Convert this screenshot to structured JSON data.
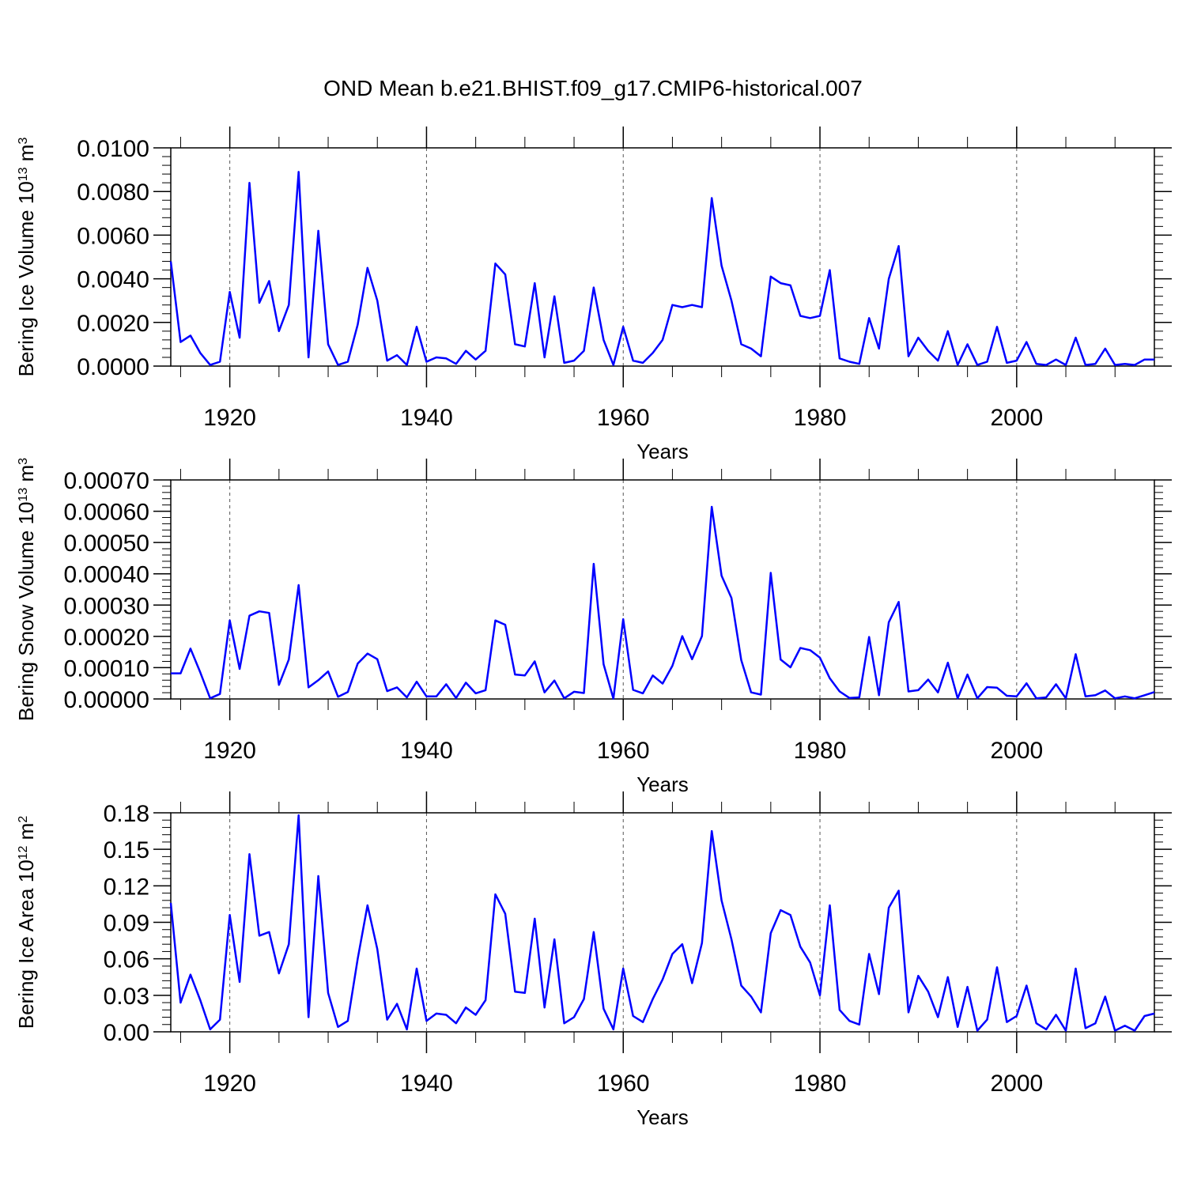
{
  "figure": {
    "title": "OND Mean b.e21.BHIST.f09_g17.CMIP6-historical.007",
    "line_color": "#0000ff",
    "axis_color": "#000000",
    "grid_color": "#555555"
  },
  "chart_data": [
    {
      "type": "line",
      "xlabel": "Years",
      "ylabel": "Bering Ice Volume 10",
      "ylabel_exp": "13",
      "ylabel_unit": "m",
      "ylabel_unit_exp": "3",
      "xlim": [
        1914,
        2014
      ],
      "ylim": [
        0,
        0.01
      ],
      "xticks": [
        1920,
        1940,
        1960,
        1980,
        2000
      ],
      "xtick_labels": [
        "1920",
        "1940",
        "1960",
        "1980",
        "2000"
      ],
      "yticks": [
        0,
        0.002,
        0.004,
        0.006,
        0.008,
        0.01
      ],
      "ytick_labels": [
        "0.0000",
        "0.0020",
        "0.0040",
        "0.0060",
        "0.0080",
        "0.0100"
      ],
      "grid": "vertical dashed at major x ticks",
      "x": [
        1914,
        1915,
        1916,
        1917,
        1918,
        1919,
        1920,
        1921,
        1922,
        1923,
        1924,
        1925,
        1926,
        1927,
        1928,
        1929,
        1930,
        1931,
        1932,
        1933,
        1934,
        1935,
        1936,
        1937,
        1938,
        1939,
        1940,
        1941,
        1942,
        1943,
        1944,
        1945,
        1946,
        1947,
        1948,
        1949,
        1950,
        1951,
        1952,
        1953,
        1954,
        1955,
        1956,
        1957,
        1958,
        1959,
        1960,
        1961,
        1962,
        1963,
        1964,
        1965,
        1966,
        1967,
        1968,
        1969,
        1970,
        1971,
        1972,
        1973,
        1974,
        1975,
        1976,
        1977,
        1978,
        1979,
        1980,
        1981,
        1982,
        1983,
        1984,
        1985,
        1986,
        1987,
        1988,
        1989,
        1990,
        1991,
        1992,
        1993,
        1994,
        1995,
        1996,
        1997,
        1998,
        1999,
        2000,
        2001,
        2002,
        2003,
        2004,
        2005,
        2006,
        2007,
        2008,
        2009,
        2010,
        2011,
        2012,
        2013,
        2014
      ],
      "values": [
        0.0048,
        0.0011,
        0.0014,
        0.0006,
        5e-05,
        0.0002,
        0.0034,
        0.0013,
        0.0084,
        0.0029,
        0.0039,
        0.0016,
        0.0028,
        0.0089,
        0.0004,
        0.0062,
        0.001,
        5e-05,
        0.0002,
        0.0019,
        0.0045,
        0.003,
        0.00025,
        0.0005,
        5e-05,
        0.0018,
        0.0002,
        0.0004,
        0.00035,
        0.0001,
        0.0007,
        0.0003,
        0.0007,
        0.0047,
        0.0042,
        0.001,
        0.0009,
        0.0038,
        0.0004,
        0.0032,
        0.00015,
        0.00025,
        0.0007,
        0.0036,
        0.0012,
        5e-05,
        0.0018,
        0.00025,
        0.00015,
        0.0006,
        0.0012,
        0.0028,
        0.0027,
        0.0028,
        0.0027,
        0.0077,
        0.0046,
        0.003,
        0.001,
        0.0008,
        0.00045,
        0.0041,
        0.0038,
        0.0037,
        0.0023,
        0.0022,
        0.0023,
        0.0044,
        0.00035,
        0.0002,
        0.0001,
        0.0022,
        0.0008,
        0.004,
        0.0055,
        0.00045,
        0.0013,
        0.0007,
        0.00025,
        0.0016,
        5e-05,
        0.001,
        5e-05,
        0.0002,
        0.0018,
        0.00015,
        0.00025,
        0.0011,
        0.0001,
        5e-05,
        0.0003,
        5e-05,
        0.0013,
        5e-05,
        0.0001,
        0.0008,
        5e-05,
        0.0001,
        5e-05,
        0.0003,
        0.0003
      ]
    },
    {
      "type": "line",
      "xlabel": "Years",
      "ylabel": "Bering Snow Volume 10",
      "ylabel_exp": "13",
      "ylabel_unit": "m",
      "ylabel_unit_exp": "3",
      "xlim": [
        1914,
        2014
      ],
      "ylim": [
        0,
        0.0007
      ],
      "xticks": [
        1920,
        1940,
        1960,
        1980,
        2000
      ],
      "xtick_labels": [
        "1920",
        "1940",
        "1960",
        "1980",
        "2000"
      ],
      "yticks": [
        0,
        0.0001,
        0.0002,
        0.0003,
        0.0004,
        0.0005,
        0.0006,
        0.0007
      ],
      "ytick_labels": [
        "0.00000",
        "0.00010",
        "0.00020",
        "0.00030",
        "0.00040",
        "0.00050",
        "0.00060",
        "0.00070"
      ],
      "grid": "vertical dashed at major x ticks",
      "x": [
        1914,
        1915,
        1916,
        1917,
        1918,
        1919,
        1920,
        1921,
        1922,
        1923,
        1924,
        1925,
        1926,
        1927,
        1928,
        1929,
        1930,
        1931,
        1932,
        1933,
        1934,
        1935,
        1936,
        1937,
        1938,
        1939,
        1940,
        1941,
        1942,
        1943,
        1944,
        1945,
        1946,
        1947,
        1948,
        1949,
        1950,
        1951,
        1952,
        1953,
        1954,
        1955,
        1956,
        1957,
        1958,
        1959,
        1960,
        1961,
        1962,
        1963,
        1964,
        1965,
        1966,
        1967,
        1968,
        1969,
        1970,
        1971,
        1972,
        1973,
        1974,
        1975,
        1976,
        1977,
        1978,
        1979,
        1980,
        1981,
        1982,
        1983,
        1984,
        1985,
        1986,
        1987,
        1988,
        1989,
        1990,
        1991,
        1992,
        1993,
        1994,
        1995,
        1996,
        1997,
        1998,
        1999,
        2000,
        2001,
        2002,
        2003,
        2004,
        2005,
        2006,
        2007,
        2008,
        2009,
        2010,
        2011,
        2012,
        2013,
        2014
      ],
      "values": [
        8.2e-05,
        8.2e-05,
        0.000161,
        8.5e-05,
        2e-06,
        1.6e-05,
        0.000251,
        9.6e-05,
        0.000266,
        0.00028,
        0.000275,
        4.5e-05,
        0.000126,
        0.000364,
        3.7e-05,
        6e-05,
        8.8e-05,
        7e-06,
        2.2e-05,
        0.000113,
        0.000145,
        0.000127,
        2.5e-05,
        3.7e-05,
        5e-06,
        5.5e-05,
        8e-06,
        8e-06,
        4.7e-05,
        3e-06,
        5.2e-05,
        1.8e-05,
        2.8e-05,
        0.000251,
        0.000237,
        7.8e-05,
        7.5e-05,
        0.00012,
        2.1e-05,
        5.9e-05,
        2e-06,
        2.3e-05,
        1.9e-05,
        0.000432,
        0.000111,
        1e-06,
        0.000255,
        2.9e-05,
        1.8e-05,
        7.5e-05,
        4.9e-05,
        0.000106,
        0.000201,
        0.000127,
        0.000201,
        0.000614,
        0.000394,
        0.000323,
        0.000124,
        2.1e-05,
        1.4e-05,
        0.000403,
        0.000126,
        0.000101,
        0.000163,
        0.000156,
        0.000132,
        6.6e-05,
        2.4e-05,
        3e-06,
        5e-06,
        0.000198,
        1.2e-05,
        0.000245,
        0.00031,
        2.4e-05,
        2.8e-05,
        6.2e-05,
        2.1e-05,
        0.000116,
        2e-06,
        7.8e-05,
        2e-06,
        3.8e-05,
        3.6e-05,
        1e-05,
        8e-06,
        5e-05,
        2e-06,
        5e-06,
        4.7e-05,
        2e-06,
        0.000143,
        8e-06,
        1.2e-05,
        2.7e-05,
        2e-06,
        8e-06,
        2e-06,
        1.2e-05,
        2.2e-05
      ]
    },
    {
      "type": "line",
      "xlabel": "Years",
      "ylabel": "Bering Ice Area 10",
      "ylabel_exp": "12",
      "ylabel_unit": "m",
      "ylabel_unit_exp": "2",
      "xlim": [
        1914,
        2014
      ],
      "ylim": [
        0,
        0.18
      ],
      "xticks": [
        1920,
        1940,
        1960,
        1980,
        2000
      ],
      "xtick_labels": [
        "1920",
        "1940",
        "1960",
        "1980",
        "2000"
      ],
      "yticks": [
        0,
        0.03,
        0.06,
        0.09,
        0.12,
        0.15,
        0.18
      ],
      "ytick_labels": [
        "0.00",
        "0.03",
        "0.06",
        "0.09",
        "0.12",
        "0.15",
        "0.18"
      ],
      "grid": "vertical dashed at major x ticks",
      "x": [
        1914,
        1915,
        1916,
        1917,
        1918,
        1919,
        1920,
        1921,
        1922,
        1923,
        1924,
        1925,
        1926,
        1927,
        1928,
        1929,
        1930,
        1931,
        1932,
        1933,
        1934,
        1935,
        1936,
        1937,
        1938,
        1939,
        1940,
        1941,
        1942,
        1943,
        1944,
        1945,
        1946,
        1947,
        1948,
        1949,
        1950,
        1951,
        1952,
        1953,
        1954,
        1955,
        1956,
        1957,
        1958,
        1959,
        1960,
        1961,
        1962,
        1963,
        1964,
        1965,
        1966,
        1967,
        1968,
        1969,
        1970,
        1971,
        1972,
        1973,
        1974,
        1975,
        1976,
        1977,
        1978,
        1979,
        1980,
        1981,
        1982,
        1983,
        1984,
        1985,
        1986,
        1987,
        1988,
        1989,
        1990,
        1991,
        1992,
        1993,
        1994,
        1995,
        1996,
        1997,
        1998,
        1999,
        2000,
        2001,
        2002,
        2003,
        2004,
        2005,
        2006,
        2007,
        2008,
        2009,
        2010,
        2011,
        2012,
        2013,
        2014
      ],
      "values": [
        0.106,
        0.024,
        0.047,
        0.026,
        0.002,
        0.01,
        0.096,
        0.041,
        0.146,
        0.079,
        0.082,
        0.048,
        0.072,
        0.178,
        0.012,
        0.128,
        0.032,
        0.004,
        0.009,
        0.06,
        0.104,
        0.068,
        0.01,
        0.023,
        0.002,
        0.052,
        0.009,
        0.015,
        0.014,
        0.007,
        0.02,
        0.014,
        0.026,
        0.113,
        0.097,
        0.033,
        0.032,
        0.093,
        0.02,
        0.076,
        0.007,
        0.012,
        0.027,
        0.082,
        0.019,
        0.002,
        0.052,
        0.013,
        0.008,
        0.027,
        0.043,
        0.064,
        0.072,
        0.04,
        0.073,
        0.165,
        0.108,
        0.076,
        0.038,
        0.029,
        0.016,
        0.081,
        0.1,
        0.096,
        0.07,
        0.057,
        0.03,
        0.104,
        0.018,
        0.009,
        0.006,
        0.064,
        0.031,
        0.102,
        0.116,
        0.016,
        0.046,
        0.033,
        0.012,
        0.045,
        0.004,
        0.037,
        0.001,
        0.01,
        0.053,
        0.008,
        0.013,
        0.038,
        0.007,
        0.002,
        0.014,
        0.001,
        0.052,
        0.003,
        0.007,
        0.029,
        0.001,
        0.005,
        0.001,
        0.013,
        0.015
      ]
    }
  ]
}
